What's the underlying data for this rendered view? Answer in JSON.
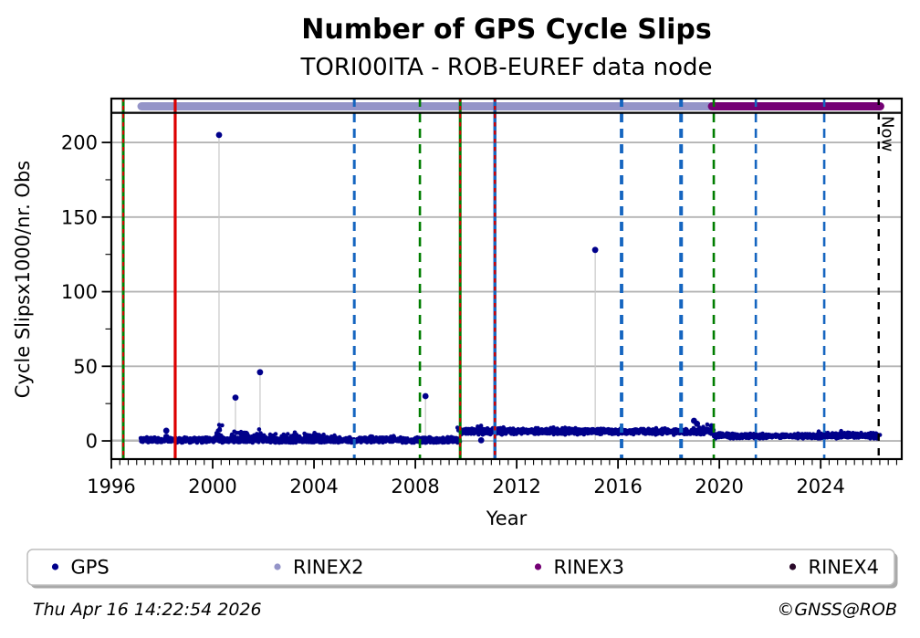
{
  "title": "Number of GPS Cycle Slips",
  "subtitle": "TORI00ITA - ROB-EUREF data node",
  "footer": {
    "timestamp": "Thu Apr 16 14:22:54 2026",
    "credit": "©GNSS@ROB"
  },
  "chart_data": {
    "type": "scatter",
    "title": "Number of GPS Cycle Slips",
    "subtitle": "TORI00ITA - ROB-EUREF data node",
    "xlabel": "Year",
    "ylabel": "Cycle Slipsx1000/nr. Obs",
    "xlim": [
      1996.0,
      2027.2
    ],
    "ylim": [
      -12.2,
      229.4
    ],
    "xticks": [
      1996,
      2000,
      2004,
      2008,
      2012,
      2016,
      2020,
      2024
    ],
    "yticks": [
      0,
      50,
      100,
      150,
      200
    ],
    "x_minor_step": 0.33333,
    "y_minor_step": 25,
    "grid": "horizontal",
    "grid_color": "#b4b4b4",
    "now_line": {
      "year": 2026.29,
      "label": "Now",
      "color": "#000000",
      "style": "dashed"
    },
    "availability_bars": [
      {
        "label": "RINEX2",
        "start": 1997.19,
        "end": 2019.71,
        "color": "#9494c8"
      },
      {
        "label": "RINEX3",
        "start": 2019.71,
        "end": 2026.35,
        "color": "#740074"
      }
    ],
    "event_lines": [
      {
        "year": 1996.47,
        "color": "#007d00",
        "style": "solid",
        "width": 3.0,
        "overlay": "#d40000"
      },
      {
        "year": 1998.52,
        "color": "#dd0000",
        "style": "solid",
        "width": 3.2,
        "overlay": null
      },
      {
        "year": 2005.59,
        "color": "#1565c0",
        "style": "dashed",
        "width": 3.0,
        "overlay": null
      },
      {
        "year": 2008.18,
        "color": "#007d00",
        "style": "dashed",
        "width": 2.6,
        "overlay": null
      },
      {
        "year": 2009.77,
        "color": "#007d00",
        "style": "solid",
        "width": 3.0,
        "overlay": "#d40000"
      },
      {
        "year": 2011.14,
        "color": "#1565c0",
        "style": "solid",
        "width": 3.4,
        "overlay": "#d40000"
      },
      {
        "year": 2016.14,
        "color": "#1565c0",
        "style": "dashed",
        "width": 3.8,
        "overlay": null
      },
      {
        "year": 2018.49,
        "color": "#1565c0",
        "style": "dashed",
        "width": 4.0,
        "overlay": null
      },
      {
        "year": 2019.78,
        "color": "#007d00",
        "style": "dashed",
        "width": 2.6,
        "overlay": null
      },
      {
        "year": 2021.44,
        "color": "#1565c0",
        "style": "dashed",
        "width": 2.6,
        "overlay": null
      },
      {
        "year": 2024.14,
        "color": "#1565c0",
        "style": "dashed",
        "width": 2.6,
        "overlay": null
      }
    ],
    "series": {
      "name": "GPS",
      "color": "#00008b",
      "point_radius": 2.3,
      "zero_line": {
        "from": 1996.03,
        "to": 1997.3,
        "value": 0.35,
        "color": "#b9b9b9"
      },
      "baseline_segments": [
        {
          "from": 1997.15,
          "to": 2009.77,
          "base": 0.55,
          "spread": 0.85,
          "min": -1.2,
          "max": 4.5,
          "n": 1300
        },
        {
          "from": 2009.77,
          "to": 2019.78,
          "base": 6.3,
          "spread": 0.9,
          "min": 3.8,
          "max": 9.5,
          "n": 1100
        },
        {
          "from": 2019.78,
          "to": 2026.28,
          "base": 3.3,
          "spread": 0.75,
          "min": 1.6,
          "max": 6.0,
          "n": 700
        }
      ],
      "clusters": [
        {
          "year": 2000.25,
          "w": 0.18,
          "base": 1.0,
          "amp": 5.0,
          "n": 18
        },
        {
          "year": 2001.6,
          "w": 0.9,
          "base": 1.0,
          "amp": 2.6,
          "n": 55
        },
        {
          "year": 2003.7,
          "w": 1.3,
          "base": 1.0,
          "amp": 2.0,
          "n": 75
        },
        {
          "year": 2006.8,
          "w": 0.9,
          "base": 0.8,
          "amp": 1.2,
          "n": 30
        },
        {
          "year": 2010.5,
          "w": 0.8,
          "base": 6.5,
          "amp": 1.3,
          "n": 35
        },
        {
          "year": 2013.6,
          "w": 2.0,
          "base": 6.4,
          "amp": 1.0,
          "n": 60
        },
        {
          "year": 2017.0,
          "w": 1.5,
          "base": 6.1,
          "amp": 1.0,
          "n": 40
        },
        {
          "year": 2019.45,
          "w": 0.3,
          "base": 6.6,
          "amp": 3.2,
          "n": 12
        },
        {
          "year": 2024.6,
          "w": 1.0,
          "base": 3.5,
          "amp": 1.2,
          "n": 30
        },
        {
          "year": 2026.0,
          "w": 0.35,
          "base": 3.3,
          "amp": 1.2,
          "n": 25
        }
      ],
      "outliers": [
        {
          "year": 2000.25,
          "value": 205,
          "stem": true
        },
        {
          "year": 2000.9,
          "value": 29,
          "stem": true
        },
        {
          "year": 2001.87,
          "value": 46,
          "stem": true
        },
        {
          "year": 2008.4,
          "value": 30,
          "stem": true
        },
        {
          "year": 2015.1,
          "value": 128,
          "stem": true
        },
        {
          "year": 1998.17,
          "value": 6.8,
          "stem": false
        },
        {
          "year": 1998.17,
          "value": 2.8,
          "stem": false
        },
        {
          "year": 2010.6,
          "value": 0.4,
          "stem": false
        },
        {
          "year": 2019.0,
          "value": 13.5,
          "stem": false
        },
        {
          "year": 2019.12,
          "value": 11.5,
          "stem": false
        }
      ],
      "stem_color": "#c8c8c8"
    },
    "legend": {
      "position": "bottom",
      "entries": [
        {
          "label": "GPS",
          "color": "#00008b"
        },
        {
          "label": "RINEX2",
          "color": "#9494c8"
        },
        {
          "label": "RINEX3",
          "color": "#740074"
        },
        {
          "label": "RINEX4",
          "color": "#2a0a2a"
        }
      ]
    }
  }
}
